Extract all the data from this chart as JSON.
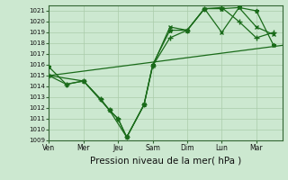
{
  "background_color": "#cce8d0",
  "grid_color": "#aaccaa",
  "line_color": "#1a6b1a",
  "ylim": [
    1009,
    1021.5
  ],
  "ytick_vals": [
    1009,
    1010,
    1011,
    1012,
    1013,
    1014,
    1015,
    1016,
    1017,
    1018,
    1019,
    1020,
    1021
  ],
  "xlabel": "Pression niveau de la mer( hPa )",
  "xlabel_fontsize": 7.5,
  "xtick_labels": [
    "Ven",
    "Mer",
    "Jeu",
    "Sam",
    "Dim",
    "Lun",
    "Mar"
  ],
  "xtick_positions": [
    0,
    2,
    4,
    6,
    8,
    10,
    12
  ],
  "xlim": [
    0,
    13.5
  ],
  "s1_x": [
    0,
    1,
    2,
    3,
    3.5,
    4,
    4.5,
    5.5,
    6,
    7,
    8,
    9,
    10,
    11,
    12,
    13
  ],
  "s1_y": [
    1015.8,
    1014.2,
    1014.5,
    1012.8,
    1011.8,
    1011.0,
    1009.3,
    1012.3,
    1016.0,
    1019.2,
    1019.2,
    1021.2,
    1021.2,
    1021.3,
    1021.0,
    1017.8
  ],
  "s2_x": [
    0,
    1,
    2,
    3,
    3.5,
    4,
    4.5,
    5.5,
    6,
    7,
    8,
    9,
    10,
    11,
    12,
    13
  ],
  "s2_y": [
    1015.0,
    1014.2,
    1014.5,
    1012.8,
    1011.8,
    1011.0,
    1009.3,
    1012.3,
    1015.9,
    1018.5,
    1019.2,
    1021.2,
    1021.3,
    1020.0,
    1018.5,
    1019.0
  ],
  "s3_x": [
    0,
    2,
    3.5,
    4.5,
    5.5,
    6,
    7,
    8,
    9,
    10,
    11,
    12,
    13
  ],
  "s3_y": [
    1015.0,
    1014.5,
    1011.8,
    1009.3,
    1012.3,
    1015.9,
    1019.5,
    1019.2,
    1021.2,
    1019.0,
    1021.3,
    1019.5,
    1018.8
  ],
  "trend_x": [
    0,
    13.5
  ],
  "trend_y": [
    1015.0,
    1017.8
  ],
  "lw": 0.9,
  "ms_star": 3.5,
  "ms_plus": 4.0,
  "ms_x": 3.0
}
